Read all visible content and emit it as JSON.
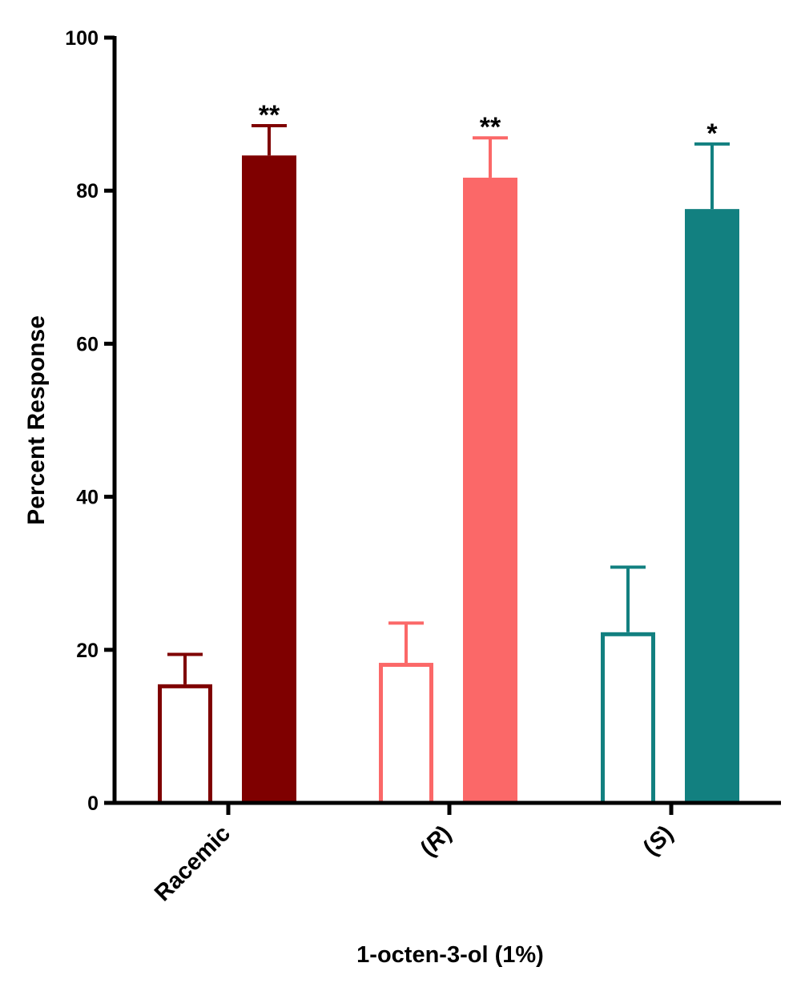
{
  "chart_data": {
    "type": "bar",
    "title": "",
    "xlabel": "1-octen-3-ol (1%)",
    "ylabel": "Percent Response",
    "ylim": [
      0,
      100
    ],
    "yticks": [
      0,
      20,
      40,
      60,
      80,
      100
    ],
    "grid": false,
    "legend": "none",
    "categories": [
      {
        "label": "Racemic",
        "italic": false,
        "color": "#7f0000"
      },
      {
        "label": "R",
        "italic": true,
        "color": "#fb6868"
      },
      {
        "label": "S",
        "italic": true,
        "color": "#128080"
      }
    ],
    "series": [
      {
        "style": "outline",
        "values": [
          15.5,
          18.3,
          22.3
        ],
        "errors": [
          3.9,
          5.2,
          8.5
        ],
        "significance": [
          "",
          "",
          ""
        ]
      },
      {
        "style": "filled",
        "values": [
          84.6,
          81.7,
          77.6
        ],
        "errors": [
          3.9,
          5.2,
          8.5
        ],
        "significance": [
          "**",
          "**",
          "*"
        ]
      }
    ]
  }
}
